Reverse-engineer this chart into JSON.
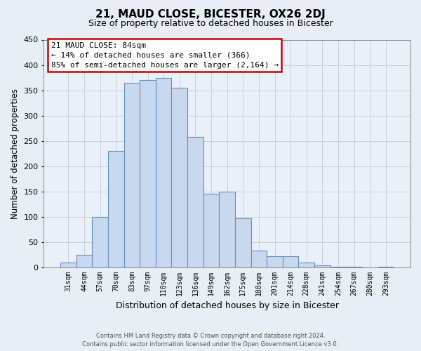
{
  "title": "21, MAUD CLOSE, BICESTER, OX26 2DJ",
  "subtitle": "Size of property relative to detached houses in Bicester",
  "xlabel": "Distribution of detached houses by size in Bicester",
  "ylabel": "Number of detached properties",
  "categories": [
    "31sqm",
    "44sqm",
    "57sqm",
    "70sqm",
    "83sqm",
    "97sqm",
    "110sqm",
    "123sqm",
    "136sqm",
    "149sqm",
    "162sqm",
    "175sqm",
    "188sqm",
    "201sqm",
    "214sqm",
    "228sqm",
    "241sqm",
    "254sqm",
    "267sqm",
    "280sqm",
    "293sqm"
  ],
  "values": [
    10,
    25,
    100,
    230,
    365,
    370,
    375,
    355,
    258,
    145,
    150,
    97,
    34,
    22,
    22,
    10,
    4,
    1,
    1,
    0,
    1
  ],
  "bar_color": "#c8d8ee",
  "bar_edge_color": "#6090c0",
  "ylim": [
    0,
    450
  ],
  "yticks": [
    0,
    50,
    100,
    150,
    200,
    250,
    300,
    350,
    400,
    450
  ],
  "annotation_title": "21 MAUD CLOSE: 84sqm",
  "annotation_line1": "← 14% of detached houses are smaller (366)",
  "annotation_line2": "85% of semi-detached houses are larger (2,164) →",
  "annotation_box_color": "#ffffff",
  "annotation_box_edge": "#cc0000",
  "footer_line1": "Contains HM Land Registry data © Crown copyright and database right 2024.",
  "footer_line2": "Contains public sector information licensed under the Open Government Licence v3.0.",
  "background_color": "#e8eef5",
  "plot_background": "#eaf0f8",
  "grid_color": "#c8d0dc"
}
